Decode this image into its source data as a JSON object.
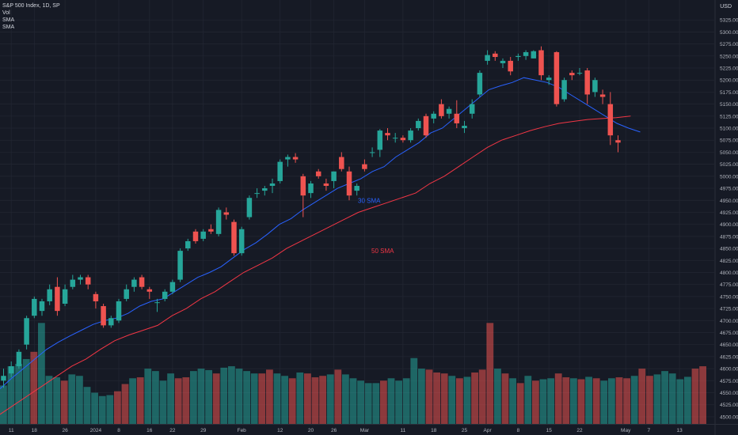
{
  "legend": {
    "title": "S&P 500 Index, 1D, SP",
    "vol": "Vol",
    "sma1": "SMA",
    "sma2": "SMA"
  },
  "currency": "USD",
  "annotations": {
    "sma30": "30 SMA",
    "sma50": "50 SMA"
  },
  "colors": {
    "up": "#26a69a",
    "down": "#ef5350",
    "sma30": "#2962ff",
    "sma50": "#f23645",
    "background": "#161a25",
    "grid": "#232733"
  },
  "chart_data": {
    "type": "candlestick",
    "title": "S&P 500 Index, 1D, SP",
    "ylim": [
      4490,
      5350
    ],
    "y_ticks": [
      4500,
      4525,
      4550,
      4575,
      4600,
      4625,
      4650,
      4675,
      4700,
      4725,
      4750,
      4775,
      4800,
      4825,
      4850,
      4875,
      4900,
      4925,
      4950,
      4975,
      5000,
      5025,
      5050,
      5075,
      5100,
      5125,
      5150,
      5175,
      5200,
      5225,
      5250,
      5275,
      5300,
      5325
    ],
    "x_tick_labels": [
      {
        "i": 1,
        "label": "11"
      },
      {
        "i": 4,
        "label": "18"
      },
      {
        "i": 8,
        "label": "26"
      },
      {
        "i": 12,
        "label": "2024"
      },
      {
        "i": 15,
        "label": "8"
      },
      {
        "i": 19,
        "label": "16"
      },
      {
        "i": 22,
        "label": "22"
      },
      {
        "i": 26,
        "label": "29"
      },
      {
        "i": 31,
        "label": "Feb"
      },
      {
        "i": 36,
        "label": "12"
      },
      {
        "i": 40,
        "label": "20"
      },
      {
        "i": 43,
        "label": "26"
      },
      {
        "i": 47,
        "label": "Mar"
      },
      {
        "i": 52,
        "label": "11"
      },
      {
        "i": 56,
        "label": "18"
      },
      {
        "i": 60,
        "label": "25"
      },
      {
        "i": 63,
        "label": "Apr"
      },
      {
        "i": 67,
        "label": "8"
      },
      {
        "i": 71,
        "label": "15"
      },
      {
        "i": 75,
        "label": "22"
      },
      {
        "i": 81,
        "label": "May"
      },
      {
        "i": 84,
        "label": "7"
      },
      {
        "i": 88,
        "label": "13"
      }
    ],
    "candles": [
      {
        "o": 4575,
        "h": 4600,
        "l": 4560,
        "c": 4585
      },
      {
        "o": 4590,
        "h": 4615,
        "l": 4582,
        "c": 4605
      },
      {
        "o": 4605,
        "h": 4640,
        "l": 4600,
        "c": 4635
      },
      {
        "o": 4650,
        "h": 4710,
        "l": 4640,
        "c": 4705
      },
      {
        "o": 4710,
        "h": 4750,
        "l": 4705,
        "c": 4745
      },
      {
        "o": 4720,
        "h": 4745,
        "l": 4710,
        "c": 4740
      },
      {
        "o": 4740,
        "h": 4775,
        "l": 4732,
        "c": 4765
      },
      {
        "o": 4770,
        "h": 4790,
        "l": 4710,
        "c": 4720
      },
      {
        "o": 4735,
        "h": 4775,
        "l": 4730,
        "c": 4765
      },
      {
        "o": 4770,
        "h": 4795,
        "l": 4765,
        "c": 4785
      },
      {
        "o": 4785,
        "h": 4795,
        "l": 4775,
        "c": 4790
      },
      {
        "o": 4790,
        "h": 4795,
        "l": 4765,
        "c": 4775
      },
      {
        "o": 4755,
        "h": 4760,
        "l": 4725,
        "c": 4740
      },
      {
        "o": 4730,
        "h": 4735,
        "l": 4685,
        "c": 4690
      },
      {
        "o": 4690,
        "h": 4710,
        "l": 4685,
        "c": 4705
      },
      {
        "o": 4700,
        "h": 4745,
        "l": 4695,
        "c": 4740
      },
      {
        "o": 4745,
        "h": 4775,
        "l": 4740,
        "c": 4765
      },
      {
        "o": 4770,
        "h": 4790,
        "l": 4760,
        "c": 4785
      },
      {
        "o": 4790,
        "h": 4795,
        "l": 4765,
        "c": 4770
      },
      {
        "o": 4765,
        "h": 4770,
        "l": 4745,
        "c": 4760
      },
      {
        "o": 4738,
        "h": 4745,
        "l": 4718,
        "c": 4738
      },
      {
        "o": 4745,
        "h": 4765,
        "l": 4740,
        "c": 4760
      },
      {
        "o": 4760,
        "h": 4785,
        "l": 4755,
        "c": 4780
      },
      {
        "o": 4785,
        "h": 4850,
        "l": 4780,
        "c": 4845
      },
      {
        "o": 4850,
        "h": 4870,
        "l": 4845,
        "c": 4865
      },
      {
        "o": 4885,
        "h": 4890,
        "l": 4860,
        "c": 4865
      },
      {
        "o": 4870,
        "h": 4890,
        "l": 4865,
        "c": 4885
      },
      {
        "o": 4890,
        "h": 4900,
        "l": 4880,
        "c": 4885
      },
      {
        "o": 4880,
        "h": 4935,
        "l": 4875,
        "c": 4930
      },
      {
        "o": 4925,
        "h": 4935,
        "l": 4910,
        "c": 4920
      },
      {
        "o": 4905,
        "h": 4910,
        "l": 4835,
        "c": 4840
      },
      {
        "o": 4840,
        "h": 4895,
        "l": 4835,
        "c": 4890
      },
      {
        "o": 4915,
        "h": 4960,
        "l": 4910,
        "c": 4955
      },
      {
        "o": 4965,
        "h": 4975,
        "l": 4955,
        "c": 4965
      },
      {
        "o": 4970,
        "h": 4980,
        "l": 4960,
        "c": 4975
      },
      {
        "o": 4980,
        "h": 4995,
        "l": 4965,
        "c": 4985
      },
      {
        "o": 4990,
        "h": 5035,
        "l": 4985,
        "c": 5030
      },
      {
        "o": 5035,
        "h": 5045,
        "l": 5020,
        "c": 5040
      },
      {
        "o": 5040,
        "h": 5048,
        "l": 5028,
        "c": 5035
      },
      {
        "o": 5000,
        "h": 5005,
        "l": 4915,
        "c": 4960
      },
      {
        "o": 4965,
        "h": 4990,
        "l": 4955,
        "c": 4985
      },
      {
        "o": 5010,
        "h": 5015,
        "l": 4995,
        "c": 5000
      },
      {
        "o": 4985,
        "h": 4995,
        "l": 4970,
        "c": 4980
      },
      {
        "o": 4990,
        "h": 5010,
        "l": 4975,
        "c": 5010
      },
      {
        "o": 5040,
        "h": 5050,
        "l": 5010,
        "c": 5015
      },
      {
        "o": 5010,
        "h": 5020,
        "l": 4950,
        "c": 4960
      },
      {
        "o": 4970,
        "h": 4985,
        "l": 4960,
        "c": 4980
      },
      {
        "o": 5025,
        "h": 5035,
        "l": 5010,
        "c": 5015
      },
      {
        "o": 5050,
        "h": 5060,
        "l": 5040,
        "c": 5050
      },
      {
        "o": 5055,
        "h": 5098,
        "l": 5040,
        "c": 5095
      },
      {
        "o": 5090,
        "h": 5100,
        "l": 5075,
        "c": 5085
      },
      {
        "o": 5080,
        "h": 5090,
        "l": 5070,
        "c": 5080
      },
      {
        "o": 5080,
        "h": 5085,
        "l": 5070,
        "c": 5075
      },
      {
        "o": 5075,
        "h": 5100,
        "l": 5070,
        "c": 5095
      },
      {
        "o": 5100,
        "h": 5120,
        "l": 5095,
        "c": 5115
      },
      {
        "o": 5125,
        "h": 5130,
        "l": 5080,
        "c": 5085
      },
      {
        "o": 5120,
        "h": 5135,
        "l": 5110,
        "c": 5130
      },
      {
        "o": 5150,
        "h": 5160,
        "l": 5120,
        "c": 5125
      },
      {
        "o": 5130,
        "h": 5145,
        "l": 5120,
        "c": 5140
      },
      {
        "o": 5130,
        "h": 5158,
        "l": 5100,
        "c": 5110
      },
      {
        "o": 5100,
        "h": 5115,
        "l": 5090,
        "c": 5105
      },
      {
        "o": 5130,
        "h": 5160,
        "l": 5120,
        "c": 5150
      },
      {
        "o": 5170,
        "h": 5220,
        "l": 5165,
        "c": 5215
      },
      {
        "o": 5240,
        "h": 5262,
        "l": 5232,
        "c": 5252
      },
      {
        "o": 5255,
        "h": 5260,
        "l": 5240,
        "c": 5248
      },
      {
        "o": 5235,
        "h": 5245,
        "l": 5225,
        "c": 5240
      },
      {
        "o": 5240,
        "h": 5248,
        "l": 5210,
        "c": 5218
      },
      {
        "o": 5248,
        "h": 5255,
        "l": 5240,
        "c": 5250
      },
      {
        "o": 5250,
        "h": 5262,
        "l": 5242,
        "c": 5258
      },
      {
        "o": 5245,
        "h": 5262,
        "l": 5245,
        "c": 5260
      },
      {
        "o": 5262,
        "h": 5270,
        "l": 5200,
        "c": 5210
      },
      {
        "o": 5200,
        "h": 5210,
        "l": 5190,
        "c": 5205
      },
      {
        "o": 5258,
        "h": 5260,
        "l": 5145,
        "c": 5150
      },
      {
        "o": 5160,
        "h": 5205,
        "l": 5155,
        "c": 5200
      },
      {
        "o": 5215,
        "h": 5220,
        "l": 5200,
        "c": 5210
      },
      {
        "o": 5215,
        "h": 5225,
        "l": 5210,
        "c": 5215
      },
      {
        "o": 5220,
        "h": 5225,
        "l": 5150,
        "c": 5170
      },
      {
        "o": 5175,
        "h": 5205,
        "l": 5165,
        "c": 5200
      },
      {
        "o": 5170,
        "h": 5180,
        "l": 5150,
        "c": 5165
      },
      {
        "o": 5150,
        "h": 5175,
        "l": 5065,
        "c": 5085
      },
      {
        "o": 5075,
        "h": 5085,
        "l": 5050,
        "c": 5070
      }
    ],
    "volumes": [
      {
        "v": 4565,
        "up": true
      },
      {
        "v": 4605,
        "up": true
      },
      {
        "v": 4610,
        "up": true
      },
      {
        "v": 4620,
        "up": true
      },
      {
        "v": 4635,
        "up": false
      },
      {
        "v": 4695,
        "up": true
      },
      {
        "v": 4585,
        "up": true
      },
      {
        "v": 4582,
        "up": true
      },
      {
        "v": 4575,
        "up": false
      },
      {
        "v": 4588,
        "up": true
      },
      {
        "v": 4585,
        "up": true
      },
      {
        "v": 4562,
        "up": true
      },
      {
        "v": 4550,
        "up": true
      },
      {
        "v": 4543,
        "up": true
      },
      {
        "v": 4545,
        "up": true
      },
      {
        "v": 4553,
        "up": false
      },
      {
        "v": 4568,
        "up": false
      },
      {
        "v": 4580,
        "up": true
      },
      {
        "v": 4582,
        "up": false
      },
      {
        "v": 4600,
        "up": true
      },
      {
        "v": 4595,
        "up": true
      },
      {
        "v": 4575,
        "up": true
      },
      {
        "v": 4590,
        "up": true
      },
      {
        "v": 4580,
        "up": false
      },
      {
        "v": 4582,
        "up": false
      },
      {
        "v": 4595,
        "up": true
      },
      {
        "v": 4600,
        "up": true
      },
      {
        "v": 4597,
        "up": true
      },
      {
        "v": 4590,
        "up": false
      },
      {
        "v": 4602,
        "up": true
      },
      {
        "v": 4605,
        "up": true
      },
      {
        "v": 4600,
        "up": true
      },
      {
        "v": 4595,
        "up": true
      },
      {
        "v": 4590,
        "up": true
      },
      {
        "v": 4590,
        "up": false
      },
      {
        "v": 4598,
        "up": false
      },
      {
        "v": 4590,
        "up": true
      },
      {
        "v": 4585,
        "up": true
      },
      {
        "v": 4580,
        "up": false
      },
      {
        "v": 4592,
        "up": true
      },
      {
        "v": 4590,
        "up": false
      },
      {
        "v": 4582,
        "up": false
      },
      {
        "v": 4585,
        "up": false
      },
      {
        "v": 4588,
        "up": true
      },
      {
        "v": 4598,
        "up": false
      },
      {
        "v": 4588,
        "up": true
      },
      {
        "v": 4580,
        "up": true
      },
      {
        "v": 4575,
        "up": true
      },
      {
        "v": 4570,
        "up": true
      },
      {
        "v": 4570,
        "up": true
      },
      {
        "v": 4575,
        "up": false
      },
      {
        "v": 4580,
        "up": true
      },
      {
        "v": 4575,
        "up": true
      },
      {
        "v": 4580,
        "up": true
      },
      {
        "v": 4622,
        "up": true
      },
      {
        "v": 4600,
        "up": true
      },
      {
        "v": 4598,
        "up": false
      },
      {
        "v": 4592,
        "up": false
      },
      {
        "v": 4590,
        "up": false
      },
      {
        "v": 4585,
        "up": true
      },
      {
        "v": 4580,
        "up": false
      },
      {
        "v": 4583,
        "up": true
      },
      {
        "v": 4592,
        "up": false
      },
      {
        "v": 4598,
        "up": false
      },
      {
        "v": 4695,
        "up": false
      },
      {
        "v": 4600,
        "up": true
      },
      {
        "v": 4590,
        "up": false
      },
      {
        "v": 4580,
        "up": true
      },
      {
        "v": 4570,
        "up": false
      },
      {
        "v": 4585,
        "up": true
      },
      {
        "v": 4575,
        "up": false
      },
      {
        "v": 4578,
        "up": true
      },
      {
        "v": 4580,
        "up": true
      },
      {
        "v": 4590,
        "up": false
      },
      {
        "v": 4582,
        "up": false
      },
      {
        "v": 4580,
        "up": true
      },
      {
        "v": 4578,
        "up": false
      },
      {
        "v": 4583,
        "up": true
      },
      {
        "v": 4580,
        "up": false
      },
      {
        "v": 4575,
        "up": true
      },
      {
        "v": 4580,
        "up": true
      },
      {
        "v": 4582,
        "up": false
      },
      {
        "v": 4580,
        "up": false
      },
      {
        "v": 4585,
        "up": true
      },
      {
        "v": 4600,
        "up": false
      },
      {
        "v": 4585,
        "up": false
      },
      {
        "v": 4588,
        "up": true
      },
      {
        "v": 4595,
        "up": true
      },
      {
        "v": 4590,
        "up": true
      },
      {
        "v": 4578,
        "up": true
      },
      {
        "v": 4583,
        "up": true
      },
      {
        "v": 4600,
        "up": false
      },
      {
        "v": 4605,
        "up": false
      }
    ],
    "sma30": [
      4558,
      4580,
      4600,
      4620,
      4640,
      4655,
      4668,
      4680,
      4692,
      4700,
      4705,
      4715,
      4730,
      4740,
      4745,
      4760,
      4775,
      4790,
      4800,
      4812,
      4830,
      4848,
      4862,
      4880,
      4900,
      4912,
      4930,
      4945,
      4960,
      4975,
      4985,
      4995,
      5010,
      5020,
      5040,
      5055,
      5070,
      5090,
      5100,
      5120,
      5140,
      5160,
      5180,
      5188,
      5195,
      5205,
      5200,
      5195,
      5185,
      5170,
      5155,
      5140,
      5125,
      5110,
      5100,
      5092
    ],
    "sma50": [
      4505,
      4525,
      4545,
      4565,
      4585,
      4605,
      4620,
      4640,
      4658,
      4670,
      4680,
      4690,
      4710,
      4725,
      4745,
      4760,
      4780,
      4800,
      4815,
      4830,
      4850,
      4865,
      4880,
      4895,
      4910,
      4925,
      4935,
      4945,
      4955,
      4965,
      4985,
      5000,
      5020,
      5040,
      5060,
      5075,
      5085,
      5095,
      5103,
      5110,
      5114,
      5118,
      5120,
      5122,
      5125
    ]
  }
}
